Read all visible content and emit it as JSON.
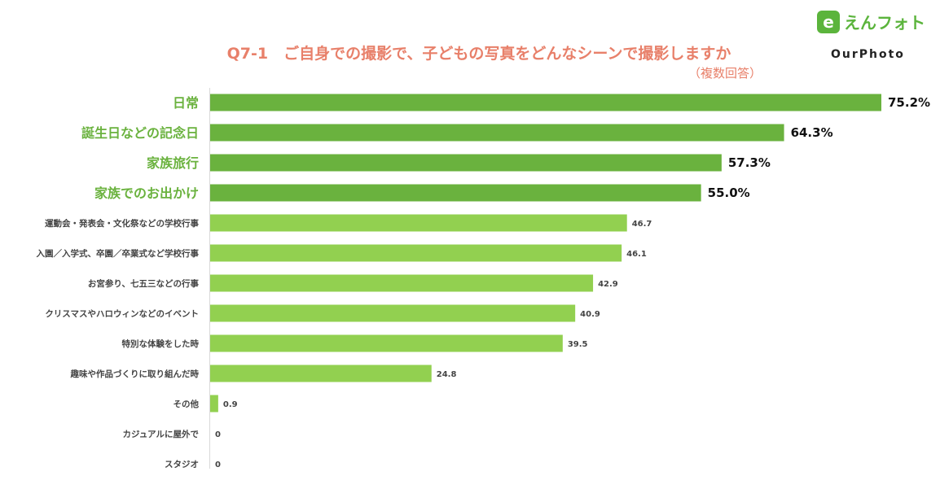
{
  "chart_data": {
    "type": "bar",
    "orientation": "horizontal",
    "title": "Q7-1　ご自身での撮影で、子どもの写真をどんなシーンで撮影しますか",
    "subtitle": "（複数回答）",
    "categories": [
      "日常",
      "誕生日などの記念日",
      "家族旅行",
      "家族でのお出かけ",
      "運動会・発表会・文化祭などの学校行事",
      "入園／入学式、卒園／卒業式など学校行事",
      "お宮参り、七五三などの行事",
      "クリスマスやハロウィンなどのイベント",
      "特別な体験をした時",
      "趣味や作品づくりに取り組んだ時",
      "その他",
      "カジュアルに屋外で",
      "スタジオ"
    ],
    "values": [
      75.2,
      64.3,
      57.3,
      55.0,
      46.7,
      46.1,
      42.9,
      40.9,
      39.5,
      24.8,
      0.9,
      0,
      0
    ],
    "value_labels": [
      "75.2%",
      "64.3%",
      "57.3%",
      "55.0%",
      "46.7",
      "46.1",
      "42.9",
      "40.9",
      "39.5",
      "24.8",
      "0.9",
      "0",
      "0"
    ],
    "highlight_count": 4,
    "xlim": [
      0,
      75.2
    ],
    "grid": false,
    "colors": {
      "highlight": "#6ab23e",
      "normal": "#92d050",
      "title": "#e8806a"
    }
  },
  "brand": {
    "logo_text": "えんフォト",
    "logo_mark": "e",
    "sub_text": "OurPhoto"
  }
}
